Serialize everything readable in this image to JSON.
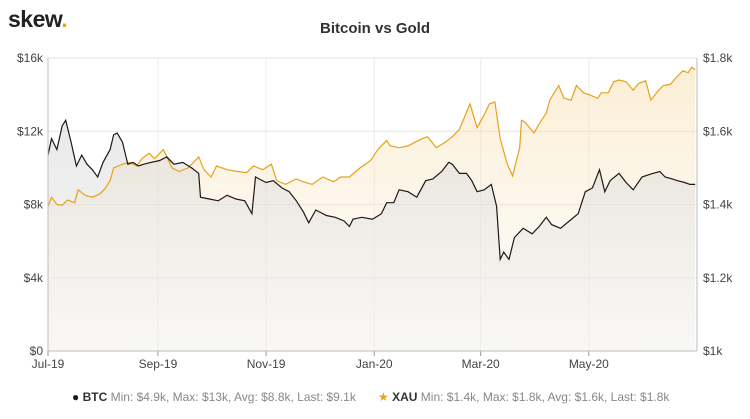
{
  "logo": {
    "text": "skew",
    "dot": "."
  },
  "chart_data": {
    "type": "line",
    "title": "Bitcoin vs Gold",
    "x_ticks": [
      "Jul-19",
      "Sep-19",
      "Nov-19",
      "Jan-20",
      "Mar-20",
      "May-20"
    ],
    "y_left": {
      "ticks": [
        "$0",
        "$4k",
        "$8k",
        "$12k",
        "$16k"
      ],
      "range": [
        0,
        16000
      ]
    },
    "y_right": {
      "ticks": [
        "$1k",
        "$1.2k",
        "$1.4k",
        "$1.6k",
        "$1.8k"
      ],
      "range": [
        1000,
        1800
      ]
    },
    "grid": true,
    "legend_position": "bottom",
    "series": [
      {
        "name": "BTC",
        "axis": "left",
        "color": "#1a1a1a",
        "stats": "Min: $4.9k, Max: $13k, Avg: $8.8k, Last: $9.1k",
        "points": [
          [
            "2019-07-01",
            10700
          ],
          [
            "2019-07-03",
            11600
          ],
          [
            "2019-07-06",
            11000
          ],
          [
            "2019-07-09",
            12300
          ],
          [
            "2019-07-11",
            12600
          ],
          [
            "2019-07-14",
            11400
          ],
          [
            "2019-07-17",
            10100
          ],
          [
            "2019-07-20",
            10700
          ],
          [
            "2019-07-23",
            10200
          ],
          [
            "2019-07-26",
            9900
          ],
          [
            "2019-07-29",
            9500
          ],
          [
            "2019-08-01",
            10300
          ],
          [
            "2019-08-05",
            11000
          ],
          [
            "2019-08-07",
            11800
          ],
          [
            "2019-08-09",
            11900
          ],
          [
            "2019-08-12",
            11400
          ],
          [
            "2019-08-15",
            10200
          ],
          [
            "2019-08-18",
            10300
          ],
          [
            "2019-08-21",
            10100
          ],
          [
            "2019-08-24",
            10200
          ],
          [
            "2019-08-28",
            10300
          ],
          [
            "2019-09-02",
            10400
          ],
          [
            "2019-09-06",
            10600
          ],
          [
            "2019-09-10",
            10200
          ],
          [
            "2019-09-15",
            10300
          ],
          [
            "2019-09-20",
            10000
          ],
          [
            "2019-09-24",
            9700
          ],
          [
            "2019-09-25",
            8400
          ],
          [
            "2019-09-30",
            8300
          ],
          [
            "2019-10-05",
            8200
          ],
          [
            "2019-10-10",
            8500
          ],
          [
            "2019-10-15",
            8300
          ],
          [
            "2019-10-20",
            8200
          ],
          [
            "2019-10-24",
            7500
          ],
          [
            "2019-10-26",
            9500
          ],
          [
            "2019-10-28",
            9400
          ],
          [
            "2019-11-01",
            9200
          ],
          [
            "2019-11-05",
            9300
          ],
          [
            "2019-11-10",
            8900
          ],
          [
            "2019-11-14",
            8700
          ],
          [
            "2019-11-18",
            8200
          ],
          [
            "2019-11-22",
            7600
          ],
          [
            "2019-11-25",
            7000
          ],
          [
            "2019-11-29",
            7700
          ],
          [
            "2019-12-05",
            7400
          ],
          [
            "2019-12-10",
            7300
          ],
          [
            "2019-12-15",
            7100
          ],
          [
            "2019-12-18",
            6800
          ],
          [
            "2019-12-20",
            7200
          ],
          [
            "2019-12-25",
            7300
          ],
          [
            "2019-12-31",
            7200
          ],
          [
            "2020-01-05",
            7500
          ],
          [
            "2020-01-08",
            8100
          ],
          [
            "2020-01-12",
            8100
          ],
          [
            "2020-01-15",
            8800
          ],
          [
            "2020-01-20",
            8700
          ],
          [
            "2020-01-25",
            8400
          ],
          [
            "2020-01-30",
            9300
          ],
          [
            "2020-02-03",
            9400
          ],
          [
            "2020-02-08",
            9800
          ],
          [
            "2020-02-12",
            10300
          ],
          [
            "2020-02-14",
            10200
          ],
          [
            "2020-02-18",
            9700
          ],
          [
            "2020-02-22",
            9700
          ],
          [
            "2020-02-25",
            9300
          ],
          [
            "2020-02-28",
            8700
          ],
          [
            "2020-03-03",
            8800
          ],
          [
            "2020-03-07",
            9100
          ],
          [
            "2020-03-10",
            7900
          ],
          [
            "2020-03-12",
            5000
          ],
          [
            "2020-03-14",
            5400
          ],
          [
            "2020-03-17",
            5000
          ],
          [
            "2020-03-20",
            6200
          ],
          [
            "2020-03-25",
            6700
          ],
          [
            "2020-03-30",
            6400
          ],
          [
            "2020-04-03",
            6800
          ],
          [
            "2020-04-07",
            7300
          ],
          [
            "2020-04-10",
            6900
          ],
          [
            "2020-04-15",
            6700
          ],
          [
            "2020-04-20",
            7100
          ],
          [
            "2020-04-25",
            7500
          ],
          [
            "2020-04-29",
            8700
          ],
          [
            "2020-05-03",
            8900
          ],
          [
            "2020-05-07",
            9900
          ],
          [
            "2020-05-10",
            8700
          ],
          [
            "2020-05-13",
            9300
          ],
          [
            "2020-05-18",
            9700
          ],
          [
            "2020-05-22",
            9200
          ],
          [
            "2020-05-26",
            8800
          ],
          [
            "2020-05-31",
            9500
          ],
          [
            "2020-06-03",
            9600
          ],
          [
            "2020-06-06",
            9700
          ],
          [
            "2020-06-10",
            9800
          ],
          [
            "2020-06-13",
            9500
          ],
          [
            "2020-06-17",
            9400
          ],
          [
            "2020-06-20",
            9300
          ],
          [
            "2020-06-24",
            9200
          ],
          [
            "2020-06-27",
            9100
          ],
          [
            "2020-06-30",
            9100
          ]
        ]
      },
      {
        "name": "XAU",
        "axis": "right",
        "color": "#e6a21a",
        "stats": "Min: $1.4k, Max: $1.8k, Avg: $1.6k, Last: $1.8k",
        "points": [
          [
            "2019-07-01",
            1395
          ],
          [
            "2019-07-03",
            1420
          ],
          [
            "2019-07-06",
            1400
          ],
          [
            "2019-07-09",
            1398
          ],
          [
            "2019-07-12",
            1412
          ],
          [
            "2019-07-16",
            1405
          ],
          [
            "2019-07-18",
            1440
          ],
          [
            "2019-07-22",
            1425
          ],
          [
            "2019-07-26",
            1420
          ],
          [
            "2019-07-30",
            1428
          ],
          [
            "2019-08-02",
            1442
          ],
          [
            "2019-08-05",
            1465
          ],
          [
            "2019-08-07",
            1500
          ],
          [
            "2019-08-12",
            1510
          ],
          [
            "2019-08-16",
            1515
          ],
          [
            "2019-08-20",
            1505
          ],
          [
            "2019-08-23",
            1525
          ],
          [
            "2019-08-27",
            1540
          ],
          [
            "2019-08-30",
            1525
          ],
          [
            "2019-09-04",
            1550
          ],
          [
            "2019-09-09",
            1500
          ],
          [
            "2019-09-13",
            1490
          ],
          [
            "2019-09-18",
            1500
          ],
          [
            "2019-09-24",
            1530
          ],
          [
            "2019-09-27",
            1495
          ],
          [
            "2019-10-01",
            1475
          ],
          [
            "2019-10-04",
            1505
          ],
          [
            "2019-10-10",
            1495
          ],
          [
            "2019-10-16",
            1490
          ],
          [
            "2019-10-21",
            1487
          ],
          [
            "2019-10-25",
            1505
          ],
          [
            "2019-10-30",
            1495
          ],
          [
            "2019-11-04",
            1510
          ],
          [
            "2019-11-07",
            1465
          ],
          [
            "2019-11-12",
            1455
          ],
          [
            "2019-11-18",
            1470
          ],
          [
            "2019-11-22",
            1462
          ],
          [
            "2019-11-27",
            1455
          ],
          [
            "2019-12-03",
            1475
          ],
          [
            "2019-12-09",
            1462
          ],
          [
            "2019-12-13",
            1475
          ],
          [
            "2019-12-18",
            1475
          ],
          [
            "2019-12-24",
            1500
          ],
          [
            "2019-12-30",
            1520
          ],
          [
            "2020-01-03",
            1550
          ],
          [
            "2020-01-08",
            1575
          ],
          [
            "2020-01-10",
            1560
          ],
          [
            "2020-01-15",
            1555
          ],
          [
            "2020-01-20",
            1560
          ],
          [
            "2020-01-24",
            1570
          ],
          [
            "2020-01-28",
            1580
          ],
          [
            "2020-01-31",
            1585
          ],
          [
            "2020-02-05",
            1555
          ],
          [
            "2020-02-10",
            1570
          ],
          [
            "2020-02-14",
            1585
          ],
          [
            "2020-02-18",
            1605
          ],
          [
            "2020-02-21",
            1640
          ],
          [
            "2020-02-24",
            1675
          ],
          [
            "2020-02-28",
            1610
          ],
          [
            "2020-03-03",
            1645
          ],
          [
            "2020-03-06",
            1675
          ],
          [
            "2020-03-09",
            1680
          ],
          [
            "2020-03-12",
            1580
          ],
          [
            "2020-03-16",
            1510
          ],
          [
            "2020-03-19",
            1478
          ],
          [
            "2020-03-23",
            1555
          ],
          [
            "2020-03-24",
            1630
          ],
          [
            "2020-03-26",
            1625
          ],
          [
            "2020-03-31",
            1595
          ],
          [
            "2020-04-03",
            1620
          ],
          [
            "2020-04-07",
            1650
          ],
          [
            "2020-04-09",
            1685
          ],
          [
            "2020-04-14",
            1725
          ],
          [
            "2020-04-17",
            1690
          ],
          [
            "2020-04-21",
            1685
          ],
          [
            "2020-04-24",
            1725
          ],
          [
            "2020-04-28",
            1705
          ],
          [
            "2020-05-01",
            1700
          ],
          [
            "2020-05-06",
            1690
          ],
          [
            "2020-05-08",
            1705
          ],
          [
            "2020-05-12",
            1705
          ],
          [
            "2020-05-15",
            1735
          ],
          [
            "2020-05-18",
            1740
          ],
          [
            "2020-05-22",
            1735
          ],
          [
            "2020-05-26",
            1712
          ],
          [
            "2020-05-29",
            1730
          ],
          [
            "2020-06-02",
            1738
          ],
          [
            "2020-06-05",
            1685
          ],
          [
            "2020-06-09",
            1710
          ],
          [
            "2020-06-12",
            1725
          ],
          [
            "2020-06-16",
            1728
          ],
          [
            "2020-06-19",
            1745
          ],
          [
            "2020-06-23",
            1765
          ],
          [
            "2020-06-26",
            1760
          ],
          [
            "2020-06-28",
            1775
          ],
          [
            "2020-06-30",
            1768
          ]
        ]
      }
    ]
  }
}
